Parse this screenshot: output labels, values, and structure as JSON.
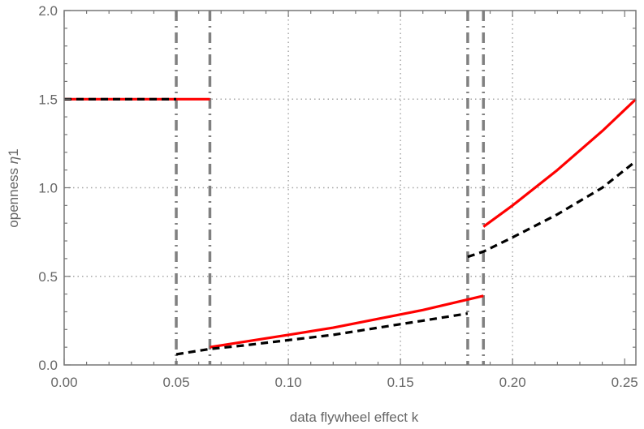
{
  "chart_data": {
    "type": "line",
    "title": "",
    "xlabel": "data flywheel effect k",
    "ylabel": "openness η1",
    "xlim": [
      0,
      0.255
    ],
    "ylim": [
      0,
      2.0
    ],
    "x_ticks": [
      "0.00",
      "0.05",
      "0.10",
      "0.15",
      "0.20",
      "0.25"
    ],
    "y_ticks": [
      "0.0",
      "0.5",
      "1.0",
      "1.5",
      "2.0"
    ],
    "grid": {
      "style": "dotted",
      "x_lines": [
        0.1,
        0.15,
        0.2
      ],
      "y_lines": [
        0.5,
        1.0,
        1.5
      ]
    },
    "vertical_markers": [
      {
        "x": 0.05,
        "style": "dash-dot",
        "color": "#808080"
      },
      {
        "x": 0.065,
        "style": "dash-dot",
        "color": "#808080"
      },
      {
        "x": 0.18,
        "style": "dash-dot",
        "color": "#808080"
      },
      {
        "x": 0.187,
        "style": "dash-dot",
        "color": "#808080"
      }
    ],
    "series": [
      {
        "name": "red solid",
        "color": "#ff0000",
        "style": "solid",
        "segments": [
          {
            "x": [
              0.0,
              0.065
            ],
            "y": [
              1.5,
              1.5
            ]
          },
          {
            "x": [
              0.065,
              0.08,
              0.1,
              0.12,
              0.14,
              0.16,
              0.187
            ],
            "y": [
              0.1,
              0.13,
              0.17,
              0.21,
              0.26,
              0.31,
              0.39
            ]
          },
          {
            "x": [
              0.187,
              0.2,
              0.22,
              0.24,
              0.255
            ],
            "y": [
              0.78,
              0.9,
              1.1,
              1.32,
              1.5
            ]
          }
        ]
      },
      {
        "name": "black dashed",
        "color": "#000000",
        "style": "dashed",
        "segments": [
          {
            "x": [
              0.0,
              0.05
            ],
            "y": [
              1.5,
              1.5
            ]
          },
          {
            "x": [
              0.05,
              0.065,
              0.08,
              0.1,
              0.12,
              0.14,
              0.16,
              0.18
            ],
            "y": [
              0.06,
              0.09,
              0.11,
              0.14,
              0.17,
              0.21,
              0.25,
              0.29
            ]
          },
          {
            "x": [
              0.18,
              0.187,
              0.2,
              0.22,
              0.24,
              0.255
            ],
            "y": [
              0.61,
              0.64,
              0.72,
              0.85,
              1.0,
              1.15
            ]
          }
        ]
      }
    ]
  },
  "axes": {
    "x_label": "data flywheel effect k",
    "y_label_main": "openness ",
    "y_label_symbol": "η",
    "y_label_sub": "1"
  }
}
